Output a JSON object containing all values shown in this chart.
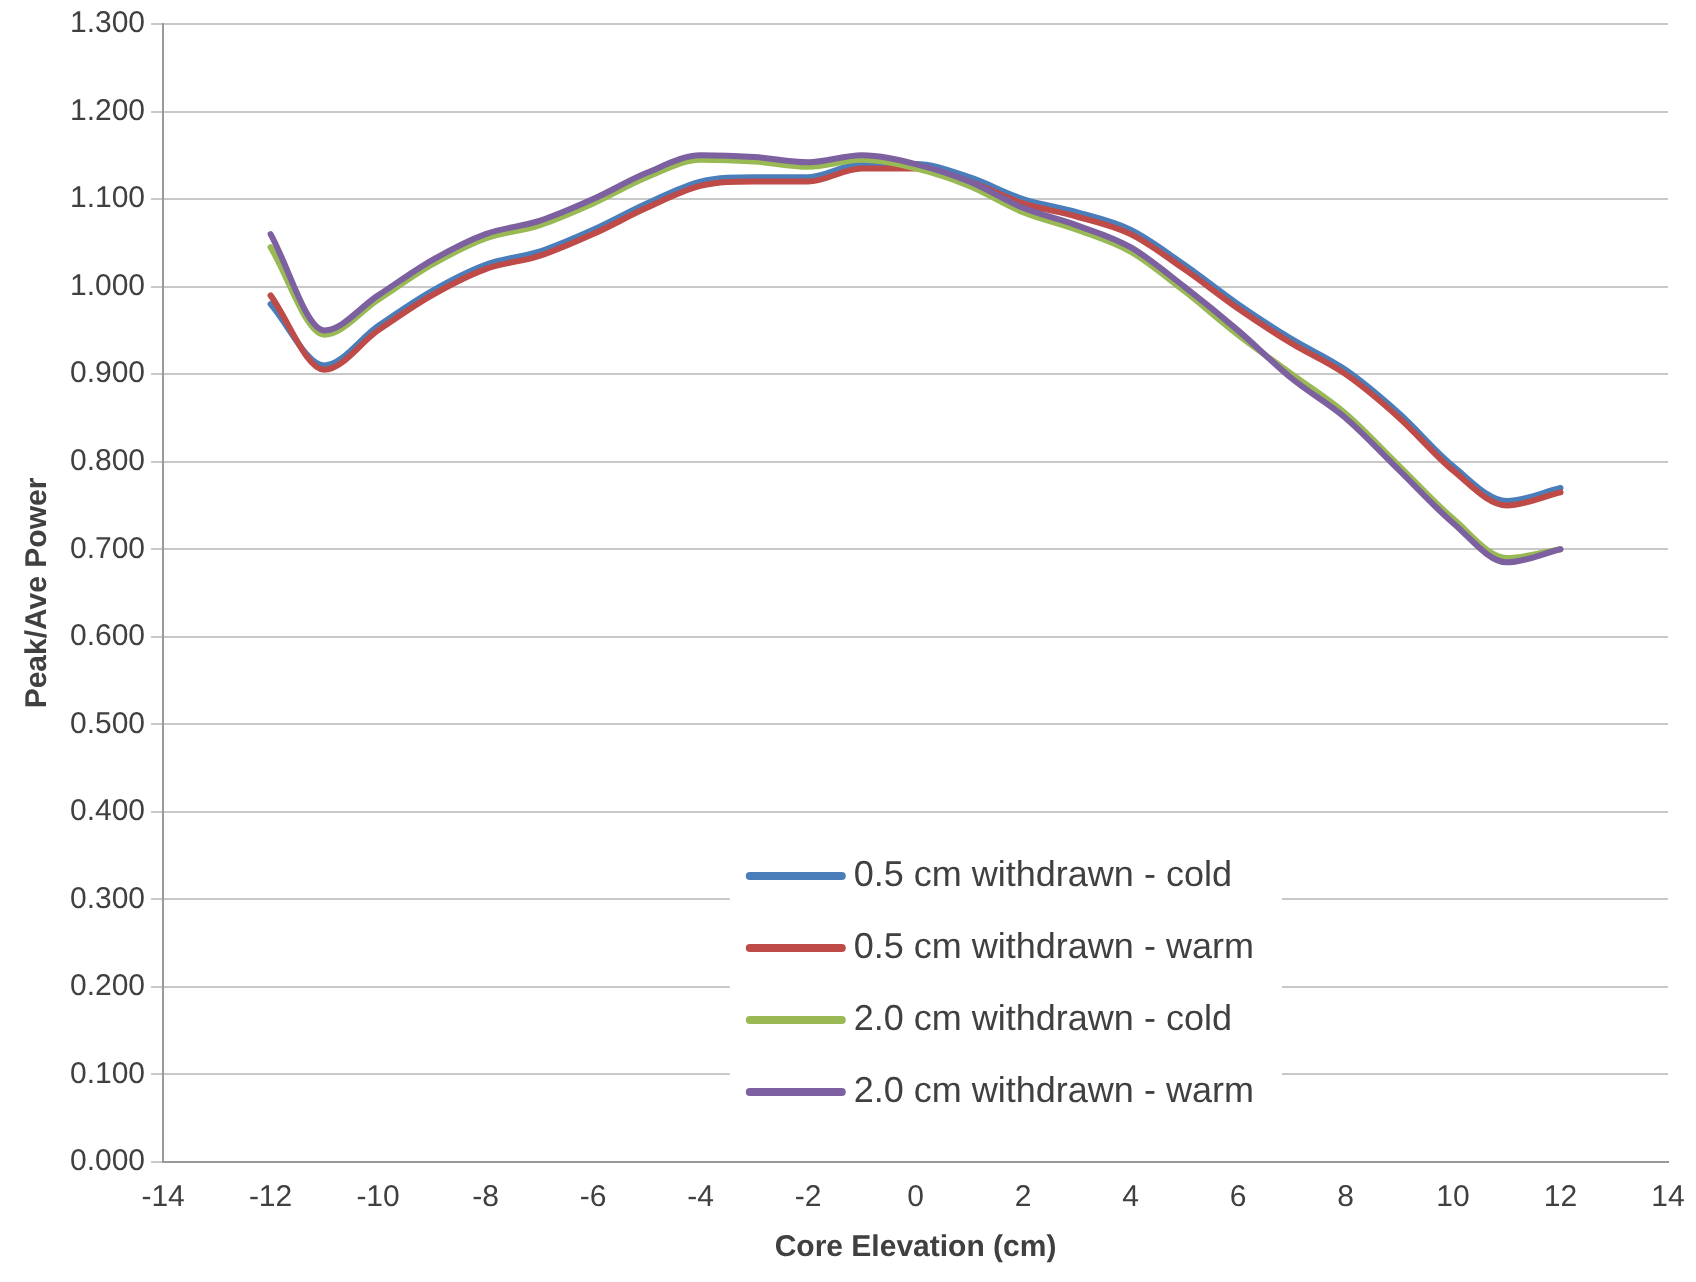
{
  "chart_data": {
    "type": "line",
    "xlabel": "Core Elevation (cm)",
    "ylabel": "Peak/Ave Power",
    "x": [
      -12,
      -11,
      -10,
      -9,
      -8,
      -7,
      -6,
      -5,
      -4,
      -3,
      -2,
      -1,
      0,
      1,
      2,
      3,
      4,
      5,
      6,
      7,
      8,
      9,
      10,
      11,
      12
    ],
    "series": [
      {
        "name": "0.5 cm withdrawn - cold",
        "color": "#4a7ebb",
        "values": [
          0.98,
          0.91,
          0.955,
          0.995,
          1.025,
          1.04,
          1.065,
          1.095,
          1.12,
          1.125,
          1.125,
          1.14,
          1.14,
          1.125,
          1.1,
          1.085,
          1.065,
          1.025,
          0.98,
          0.94,
          0.905,
          0.855,
          0.795,
          0.755,
          0.77
        ]
      },
      {
        "name": "0.5 cm withdrawn - warm",
        "color": "#be4b48",
        "values": [
          0.99,
          0.905,
          0.95,
          0.99,
          1.02,
          1.035,
          1.06,
          1.09,
          1.115,
          1.12,
          1.12,
          1.135,
          1.135,
          1.12,
          1.095,
          1.08,
          1.06,
          1.02,
          0.975,
          0.935,
          0.9,
          0.85,
          0.79,
          0.75,
          0.765
        ]
      },
      {
        "name": "2.0 cm withdrawn - cold",
        "color": "#98b954",
        "values": [
          1.045,
          0.945,
          0.985,
          1.025,
          1.055,
          1.07,
          1.095,
          1.125,
          1.145,
          1.143,
          1.137,
          1.145,
          1.135,
          1.115,
          1.085,
          1.065,
          1.04,
          0.995,
          0.945,
          0.9,
          0.855,
          0.795,
          0.735,
          0.69,
          0.7
        ]
      },
      {
        "name": "2.0 cm withdrawn - warm",
        "color": "#7d60a0",
        "values": [
          1.06,
          0.95,
          0.99,
          1.03,
          1.06,
          1.075,
          1.1,
          1.13,
          1.15,
          1.148,
          1.142,
          1.15,
          1.14,
          1.12,
          1.09,
          1.07,
          1.045,
          1.0,
          0.95,
          0.895,
          0.85,
          0.79,
          0.73,
          0.685,
          0.7
        ]
      }
    ],
    "xlim": [
      -14,
      14
    ],
    "xticks": [
      -14,
      -12,
      -10,
      -8,
      -6,
      -4,
      -2,
      0,
      2,
      4,
      6,
      8,
      10,
      12,
      14
    ],
    "ylim": [
      0,
      1.3
    ],
    "yticks": [
      {
        "value": 0,
        "label": "0.000"
      },
      {
        "value": 0.1,
        "label": "0.100"
      },
      {
        "value": 0.2,
        "label": "0.200"
      },
      {
        "value": 0.3,
        "label": "0.300"
      },
      {
        "value": 0.4,
        "label": "0.400"
      },
      {
        "value": 0.5,
        "label": "0.500"
      },
      {
        "value": 0.6,
        "label": "0.600"
      },
      {
        "value": 0.7,
        "label": "0.700"
      },
      {
        "value": 0.8,
        "label": "0.800"
      },
      {
        "value": 0.9,
        "label": "0.900"
      },
      {
        "value": 1.0,
        "label": "1.000"
      },
      {
        "value": 1.1,
        "label": "1.100"
      },
      {
        "value": 1.2,
        "label": "1.200"
      },
      {
        "value": 1.3,
        "label": "1.300"
      }
    ],
    "grid": "y",
    "legend": "bottom",
    "marker": "none",
    "line_style": "solid"
  }
}
